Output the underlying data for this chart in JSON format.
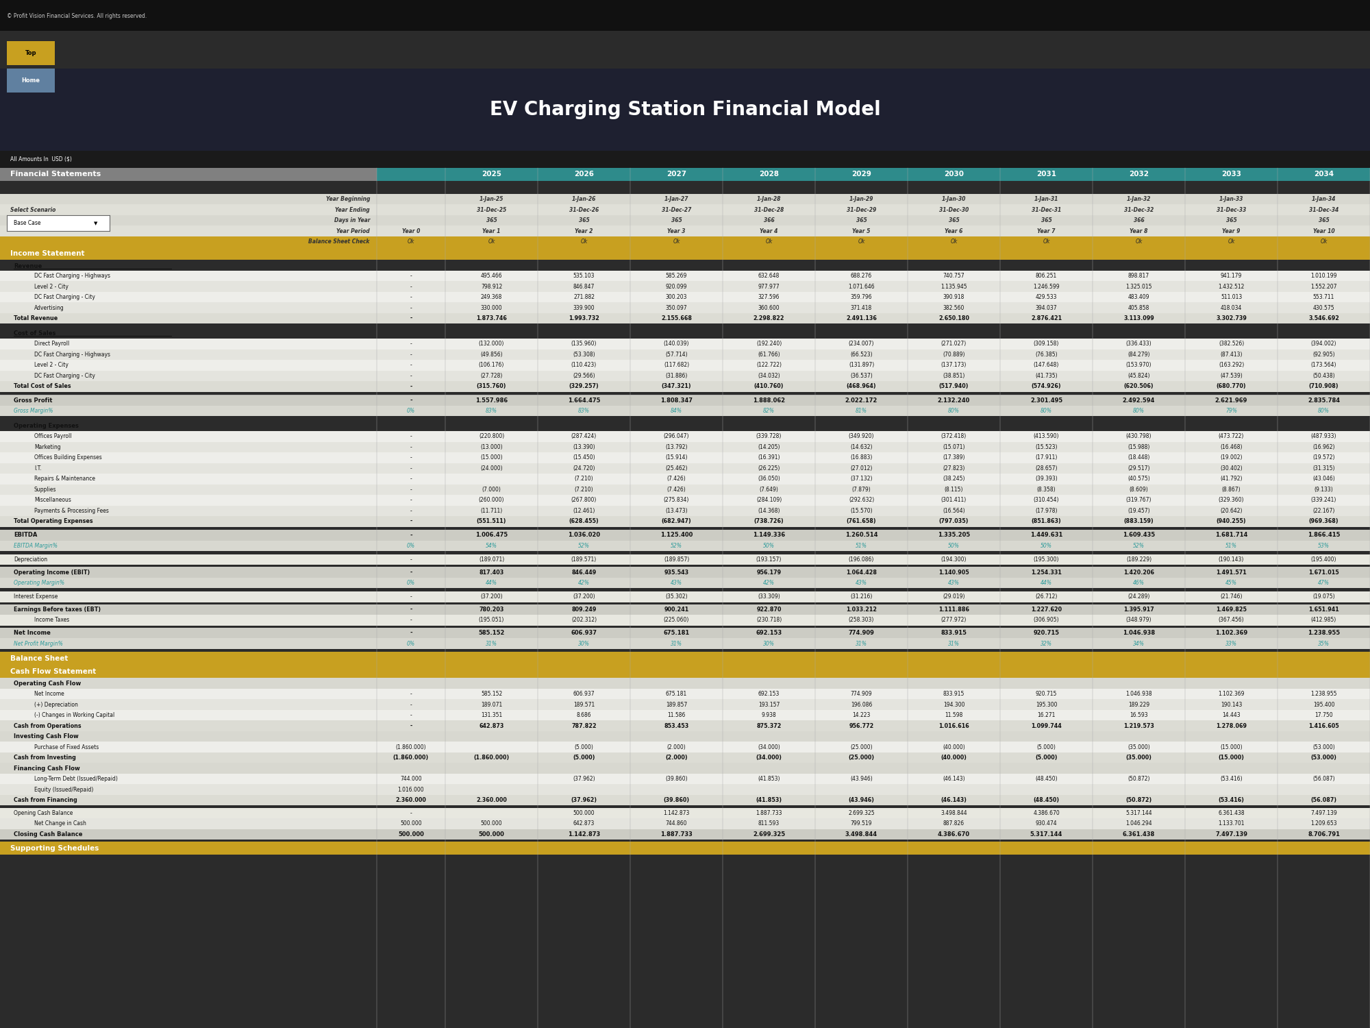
{
  "title": "EV Charging Station Financial Model",
  "copyright": "© Profit Vision Financial Services. All rights reserved.",
  "bg_color": "#2b2b2b",
  "teal_header": "#2e8b8b",
  "teal_text": "#2e9b9b",
  "years": [
    "2025",
    "2026",
    "2027",
    "2028",
    "2029",
    "2030",
    "2031",
    "2032",
    "2033",
    "2034"
  ],
  "year_begin": [
    "1-Jan-25",
    "1-Jan-26",
    "1-Jan-27",
    "1-Jan-28",
    "1-Jan-29",
    "1-Jan-30",
    "1-Jan-31",
    "1-Jan-32",
    "1-Jan-33",
    "1-Jan-34"
  ],
  "year_end": [
    "31-Dec-25",
    "31-Dec-26",
    "31-Dec-27",
    "31-Dec-28",
    "31-Dec-29",
    "31-Dec-30",
    "31-Dec-31",
    "31-Dec-32",
    "31-Dec-33",
    "31-Dec-34"
  ],
  "days": [
    "365",
    "365",
    "365",
    "366",
    "365",
    "365",
    "365",
    "366",
    "365",
    "365"
  ],
  "year_period": [
    "Year 1",
    "Year 2",
    "Year 3",
    "Year 4",
    "Year 5",
    "Year 6",
    "Year 7",
    "Year 8",
    "Year 9",
    "Year 10"
  ],
  "income_data": {
    "dc_fast_highways": [
      "495.466",
      "535.103",
      "585.269",
      "632.648",
      "688.276",
      "740.757",
      "806.251",
      "898.817",
      "941.179",
      "1.010.199"
    ],
    "level2_city": [
      "798.912",
      "846.847",
      "920.099",
      "977.977",
      "1.071.646",
      "1.135.945",
      "1.246.599",
      "1.325.015",
      "1.432.512",
      "1.552.207"
    ],
    "dc_fast_city": [
      "249.368",
      "271.882",
      "300.203",
      "327.596",
      "359.796",
      "390.918",
      "429.533",
      "483.409",
      "511.013",
      "553.711"
    ],
    "advertising": [
      "330.000",
      "339.900",
      "350.097",
      "360.600",
      "371.418",
      "382.560",
      "394.037",
      "405.858",
      "418.034",
      "430.575"
    ],
    "total_revenue": [
      "1.873.746",
      "1.993.732",
      "2.155.668",
      "2.298.822",
      "2.491.136",
      "2.650.180",
      "2.876.421",
      "3.113.099",
      "3.302.739",
      "3.546.692"
    ],
    "direct_payroll": [
      "(132.000)",
      "(135.960)",
      "(140.039)",
      "(192.240)",
      "(234.007)",
      "(271.027)",
      "(309.158)",
      "(336.433)",
      "(382.526)",
      "(394.002)"
    ],
    "cos_dc_highways": [
      "(49.856)",
      "(53.308)",
      "(57.714)",
      "(61.766)",
      "(66.523)",
      "(70.889)",
      "(76.385)",
      "(84.279)",
      "(87.413)",
      "(92.905)"
    ],
    "cos_level2": [
      "(106.176)",
      "(110.423)",
      "(117.682)",
      "(122.722)",
      "(131.897)",
      "(137.173)",
      "(147.648)",
      "(153.970)",
      "(163.292)",
      "(173.564)"
    ],
    "cos_dc_city": [
      "(27.728)",
      "(29.566)",
      "(31.886)",
      "(34.032)",
      "(36.537)",
      "(38.851)",
      "(41.735)",
      "(45.824)",
      "(47.539)",
      "(50.438)"
    ],
    "total_cos": [
      "(315.760)",
      "(329.257)",
      "(347.321)",
      "(410.760)",
      "(468.964)",
      "(517.940)",
      "(574.926)",
      "(620.506)",
      "(680.770)",
      "(710.908)"
    ],
    "gross_profit": [
      "1.557.986",
      "1.664.475",
      "1.808.347",
      "1.888.062",
      "2.022.172",
      "2.132.240",
      "2.301.495",
      "2.492.594",
      "2.621.969",
      "2.835.784"
    ],
    "gross_margin": [
      "83%",
      "83%",
      "84%",
      "82%",
      "81%",
      "80%",
      "80%",
      "80%",
      "79%",
      "80%"
    ],
    "offices_payroll": [
      "(220.800)",
      "(287.424)",
      "(296.047)",
      "(339.728)",
      "(349.920)",
      "(372.418)",
      "(413.590)",
      "(430.798)",
      "(473.722)",
      "(487.933)"
    ],
    "marketing": [
      "(13.000)",
      "(13.390)",
      "(13.792)",
      "(14.205)",
      "(14.632)",
      "(15.071)",
      "(15.523)",
      "(15.988)",
      "(16.468)",
      "(16.962)"
    ],
    "offices_building": [
      "(15.000)",
      "(15.450)",
      "(15.914)",
      "(16.391)",
      "(16.883)",
      "(17.389)",
      "(17.911)",
      "(18.448)",
      "(19.002)",
      "(19.572)"
    ],
    "it": [
      "(24.000)",
      "(24.720)",
      "(25.462)",
      "(26.225)",
      "(27.012)",
      "(27.823)",
      "(28.657)",
      "(29.517)",
      "(30.402)",
      "(31.315)"
    ],
    "repairs": [
      "",
      "(7.210)",
      "(7.426)",
      "(36.050)",
      "(37.132)",
      "(38.245)",
      "(39.393)",
      "(40.575)",
      "(41.792)",
      "(43.046)"
    ],
    "supplies": [
      "(7.000)",
      "(7.210)",
      "(7.426)",
      "(7.649)",
      "(7.879)",
      "(8.115)",
      "(8.358)",
      "(8.609)",
      "(8.867)",
      "(9.133)"
    ],
    "miscellaneous": [
      "(260.000)",
      "(267.800)",
      "(275.834)",
      "(284.109)",
      "(292.632)",
      "(301.411)",
      "(310.454)",
      "(319.767)",
      "(329.360)",
      "(339.241)"
    ],
    "payments": [
      "(11.711)",
      "(12.461)",
      "(13.473)",
      "(14.368)",
      "(15.570)",
      "(16.564)",
      "(17.978)",
      "(19.457)",
      "(20.642)",
      "(22.167)"
    ],
    "total_opex": [
      "(551.511)",
      "(628.455)",
      "(682.947)",
      "(738.726)",
      "(761.658)",
      "(797.035)",
      "(851.863)",
      "(883.159)",
      "(940.255)",
      "(969.368)"
    ],
    "ebitda": [
      "1.006.475",
      "1.036.020",
      "1.125.400",
      "1.149.336",
      "1.260.514",
      "1.335.205",
      "1.449.631",
      "1.609.435",
      "1.681.714",
      "1.866.415"
    ],
    "ebitda_margin": [
      "54%",
      "52%",
      "52%",
      "50%",
      "51%",
      "50%",
      "50%",
      "52%",
      "51%",
      "53%"
    ],
    "depreciation": [
      "(189.071)",
      "(189.571)",
      "(189.857)",
      "(193.157)",
      "(196.086)",
      "(194.300)",
      "(195.300)",
      "(189.229)",
      "(190.143)",
      "(195.400)"
    ],
    "operating_income": [
      "817.403",
      "846.449",
      "935.543",
      "956.179",
      "1.064.428",
      "1.140.905",
      "1.254.331",
      "1.420.206",
      "1.491.571",
      "1.671.015"
    ],
    "operating_margin": [
      "44%",
      "42%",
      "43%",
      "42%",
      "43%",
      "43%",
      "44%",
      "46%",
      "45%",
      "47%"
    ],
    "interest_expense": [
      "(37.200)",
      "(37.200)",
      "(35.302)",
      "(33.309)",
      "(31.216)",
      "(29.019)",
      "(26.712)",
      "(24.289)",
      "(21.746)",
      "(19.075)"
    ],
    "ebt": [
      "780.203",
      "809.249",
      "900.241",
      "922.870",
      "1.033.212",
      "1.111.886",
      "1.227.620",
      "1.395.917",
      "1.469.825",
      "1.651.941"
    ],
    "income_taxes": [
      "(195.051)",
      "(202.312)",
      "(225.060)",
      "(230.718)",
      "(258.303)",
      "(277.972)",
      "(306.905)",
      "(348.979)",
      "(367.456)",
      "(412.985)"
    ],
    "net_income": [
      "585.152",
      "606.937",
      "675.181",
      "692.153",
      "774.909",
      "833.915",
      "920.715",
      "1.046.938",
      "1.102.369",
      "1.238.955"
    ],
    "net_margin": [
      "31%",
      "30%",
      "31%",
      "30%",
      "31%",
      "31%",
      "32%",
      "34%",
      "33%",
      "35%"
    ]
  },
  "cashflow_data": {
    "net_income": [
      "585.152",
      "606.937",
      "675.181",
      "692.153",
      "774.909",
      "833.915",
      "920.715",
      "1.046.938",
      "1.102.369",
      "1.238.955"
    ],
    "depreciation": [
      "189.071",
      "189.571",
      "189.857",
      "193.157",
      "196.086",
      "194.300",
      "195.300",
      "189.229",
      "190.143",
      "195.400"
    ],
    "changes_wc": [
      "131.351",
      "8.686",
      "11.586",
      "9.938",
      "14.223",
      "11.598",
      "16.271",
      "16.593",
      "14.443",
      "17.750"
    ],
    "cash_operations": [
      "642.873",
      "787.822",
      "853.453",
      "875.372",
      "956.772",
      "1.016.616",
      "1.099.744",
      "1.219.573",
      "1.278.069",
      "1.416.605"
    ],
    "purchase_fixed": [
      "",
      "(5.000)",
      "(2.000)",
      "(34.000)",
      "(25.000)",
      "(40.000)",
      "(5.000)",
      "(35.000)",
      "(15.000)",
      "(53.000)"
    ],
    "cash_investing": [
      "(1.860.000)",
      "(5.000)",
      "(2.000)",
      "(34.000)",
      "(25.000)",
      "(40.000)",
      "(5.000)",
      "(35.000)",
      "(15.000)",
      "(53.000)"
    ],
    "lt_debt": [
      "",
      "(37.962)",
      "(39.860)",
      "(41.853)",
      "(43.946)",
      "(46.143)",
      "(48.450)",
      "(50.872)",
      "(53.416)",
      "(56.087)"
    ],
    "equity": [
      "",
      "",
      "",
      "",
      "",
      "",
      "",
      "",
      "",
      ""
    ],
    "cash_financing": [
      "2.360.000",
      "(37.962)",
      "(39.860)",
      "(41.853)",
      "(43.946)",
      "(46.143)",
      "(48.450)",
      "(50.872)",
      "(53.416)",
      "(56.087)"
    ],
    "opening_balance": [
      "",
      "500.000",
      "1.142.873",
      "1.887.733",
      "2.699.325",
      "3.498.844",
      "4.386.670",
      "5.317.144",
      "6.361.438",
      "7.497.139"
    ],
    "net_change": [
      "500.000",
      "642.873",
      "744.860",
      "811.593",
      "799.519",
      "887.826",
      "930.474",
      "1.046.294",
      "1.133.701",
      "1.209.653"
    ],
    "closing_balance": [
      "500.000",
      "1.142.873",
      "1.887.733",
      "2.699.325",
      "3.498.844",
      "4.386.670",
      "5.317.144",
      "6.361.438",
      "7.497.139",
      "8.706.791"
    ],
    "purchase_fixed_y0": "(1.860.000)",
    "cash_investing_y0": "(1.860.000)",
    "equity_y0": "1.016.000",
    "cash_financing_y0": "2.360.000"
  }
}
